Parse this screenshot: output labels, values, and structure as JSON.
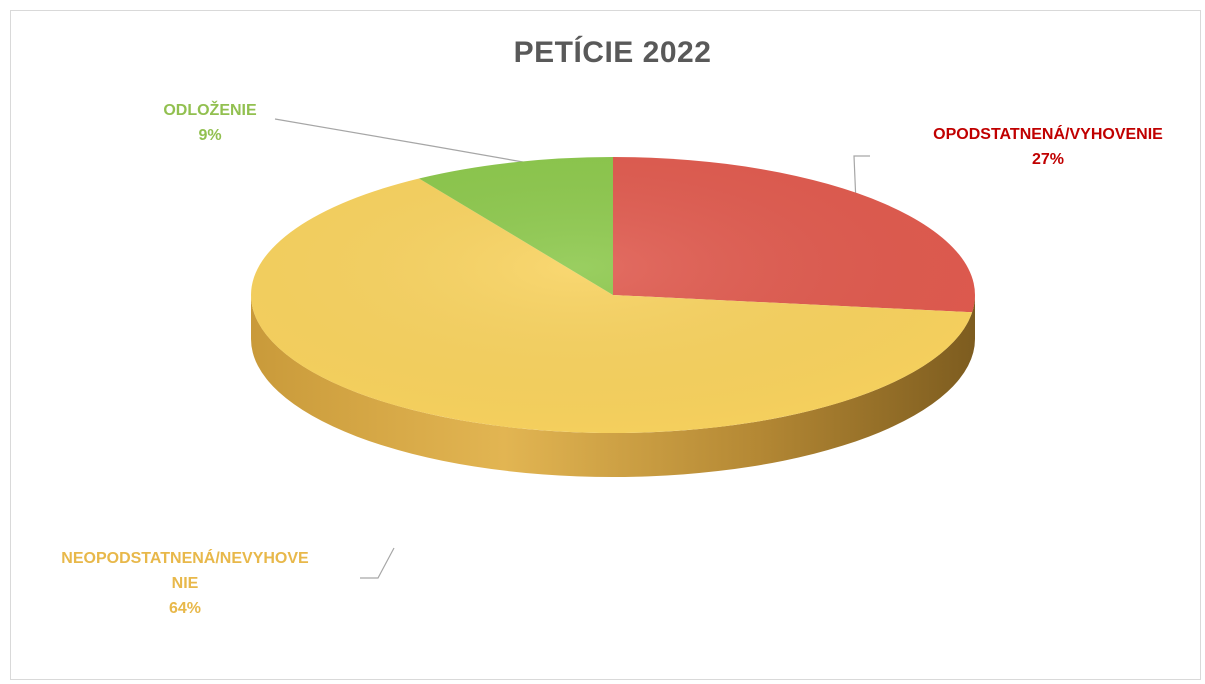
{
  "chart_data": {
    "type": "pie",
    "title": "PETÍCIE 2022",
    "slices": [
      {
        "label": "OPODSTATNENÁ/VYHOVENIE",
        "label_lines": [
          "OPODSTATNENÁ/VYHOVENIE"
        ],
        "value": 27,
        "value_text": "27%",
        "color": "#e05a4e",
        "label_color": "#c00000"
      },
      {
        "label": "NEOPODSTATNENÁ/NEVYHOVENIE",
        "label_lines": [
          "NEOPODSTATNENÁ/NEVYHOVE",
          "NIE"
        ],
        "value": 64,
        "value_text": "64%",
        "color": "#f8d25e",
        "label_color": "#e8b84a"
      },
      {
        "label": "ODLOŽENIE",
        "label_lines": [
          "ODLOŽENIE"
        ],
        "value": 9,
        "value_text": "9%",
        "color": "#8cc84b",
        "label_color": "#92c050"
      }
    ],
    "style": "3d",
    "start_angle_deg": 0,
    "direction": "clockwise"
  }
}
